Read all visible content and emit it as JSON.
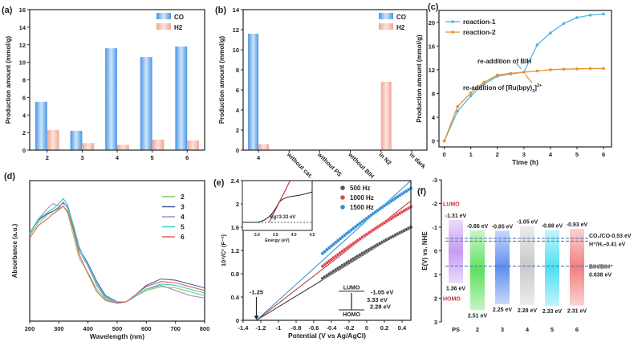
{
  "chart_data": [
    {
      "panel": "(a)",
      "type": "bar",
      "categories": [
        "2",
        "3",
        "4",
        "5",
        "6"
      ],
      "series": [
        {
          "name": "CO",
          "values": [
            5.5,
            2.2,
            11.6,
            10.6,
            11.8
          ],
          "color": "#5aa6ea"
        },
        {
          "name": "H2",
          "values": [
            2.3,
            0.8,
            0.6,
            1.2,
            1.1
          ],
          "color": "#f3b6a6"
        }
      ],
      "ylabel": "Production amount (mmol/g)",
      "xlabel": "",
      "ylim": [
        0,
        16
      ],
      "yticks": [
        0,
        2,
        4,
        6,
        8,
        10,
        12,
        14,
        16
      ],
      "legend": "top-right"
    },
    {
      "panel": "(b)",
      "type": "bar",
      "categories": [
        "4",
        "without cat.",
        "without PS",
        "without BIH",
        "in N2",
        "in dark"
      ],
      "series": [
        {
          "name": "CO",
          "values": [
            11.6,
            0,
            0,
            0,
            0,
            0
          ],
          "color": "#5aa6ea"
        },
        {
          "name": "H2",
          "values": [
            0.6,
            0,
            0,
            0,
            6.8,
            0
          ],
          "color": "#f3b6a6"
        }
      ],
      "ylabel": "Production amount (mmol/g)",
      "xlabel": "",
      "ylim": [
        0,
        14
      ],
      "yticks": [
        0,
        2,
        4,
        6,
        8,
        10,
        12,
        14
      ],
      "legend": "top-right"
    },
    {
      "panel": "(c)",
      "type": "line",
      "x": [
        0,
        0.5,
        1,
        1.5,
        2,
        2.5,
        3,
        3.5,
        4,
        4.5,
        5,
        5.5,
        6
      ],
      "series": [
        {
          "name": "reaction-1",
          "values": [
            0,
            5.0,
            7.6,
            9.6,
            10.9,
            11.3,
            11.6,
            16.2,
            18.2,
            19.8,
            20.8,
            21.2,
            21.4
          ],
          "color": "#4fb4e4"
        },
        {
          "name": "reaction-2",
          "values": [
            0,
            5.8,
            8.1,
            9.9,
            11.1,
            11.4,
            11.6,
            11.8,
            12.0,
            12.1,
            12.15,
            12.2,
            12.2
          ],
          "color": "#e8922c"
        }
      ],
      "annotations": [
        "re-addition of BIH",
        "re-addition of [Ru(bpy)3]2+"
      ],
      "annotation_parts": {
        "ru_prefix": "re-addition of [Ru(bpy)",
        "ru_sub": "3",
        "ru_sup": "2+",
        "ru_close": "]"
      },
      "xlabel": "Time (h)",
      "ylabel": "Production amount (mmol/g)",
      "xlim": [
        -0.2,
        6.3
      ],
      "ylim": [
        -1,
        22
      ],
      "xticks": [
        0,
        1,
        2,
        3,
        4,
        5,
        6
      ],
      "yticks": [
        0,
        4,
        8,
        12,
        16,
        20
      ],
      "legend": "top-left"
    },
    {
      "panel": "(d)",
      "type": "line",
      "x": [
        200,
        230,
        260,
        280,
        300,
        315,
        330,
        350,
        370,
        400,
        430,
        460,
        500,
        530,
        560,
        600,
        650,
        700,
        750,
        800
      ],
      "series": [
        {
          "name": "2",
          "color": "#7fd05c",
          "values": [
            0.62,
            0.72,
            0.78,
            0.81,
            0.83,
            0.85,
            0.8,
            0.62,
            0.44,
            0.33,
            0.2,
            0.12,
            0.09,
            0.1,
            0.14,
            0.19,
            0.22,
            0.21,
            0.18,
            0.15
          ]
        },
        {
          "name": "3",
          "color": "#3f5c9c",
          "values": [
            0.64,
            0.74,
            0.79,
            0.81,
            0.84,
            0.88,
            0.84,
            0.68,
            0.52,
            0.4,
            0.26,
            0.15,
            0.1,
            0.1,
            0.15,
            0.23,
            0.28,
            0.27,
            0.24,
            0.21
          ]
        },
        {
          "name": "4",
          "color": "#a78fc0",
          "values": [
            0.63,
            0.75,
            0.83,
            0.87,
            0.85,
            0.87,
            0.85,
            0.66,
            0.5,
            0.38,
            0.23,
            0.13,
            0.09,
            0.1,
            0.14,
            0.2,
            0.23,
            0.19,
            0.15,
            0.13
          ]
        },
        {
          "name": "5",
          "color": "#39c9c9",
          "values": [
            0.64,
            0.75,
            0.8,
            0.83,
            0.87,
            0.91,
            0.86,
            0.7,
            0.53,
            0.38,
            0.24,
            0.14,
            0.09,
            0.1,
            0.14,
            0.2,
            0.24,
            0.23,
            0.2,
            0.17
          ]
        },
        {
          "name": "6",
          "color": "#e06262",
          "values": [
            0.6,
            0.7,
            0.75,
            0.79,
            0.82,
            0.85,
            0.81,
            0.66,
            0.47,
            0.32,
            0.18,
            0.11,
            0.09,
            0.1,
            0.15,
            0.22,
            0.26,
            0.25,
            0.22,
            0.19
          ]
        }
      ],
      "xlabel": "Wavelength (nm)",
      "ylabel": "Absorbance (a.u.)",
      "xlim": [
        200,
        800
      ],
      "ylim": [
        -0.05,
        1.05
      ],
      "xticks": [
        200,
        300,
        400,
        500,
        600,
        700,
        800
      ],
      "legend": "top-right"
    },
    {
      "panel": "(e)",
      "type": "scatter",
      "series": [
        {
          "name": "500 Hz",
          "color": "#555555",
          "x_range": [
            -0.5,
            0.5
          ],
          "y_range": [
            0.72,
            1.6
          ],
          "fit_end": [
            0.5,
            1.62
          ]
        },
        {
          "name": "1000 Hz",
          "color": "#e0484f",
          "x_range": [
            -0.5,
            0.5
          ],
          "y_range": [
            0.93,
            1.95
          ],
          "fit_end": [
            0.5,
            2.05
          ]
        },
        {
          "name": "1500 Hz",
          "color": "#2f8fd8",
          "x_range": [
            -0.5,
            0.5
          ],
          "y_range": [
            1.15,
            2.27
          ],
          "fit_end": [
            0.5,
            2.4
          ]
        }
      ],
      "intercept": -1.25,
      "intercept_label": "-1.25",
      "xlabel": "Potential (V vs Ag/AgCl)",
      "ylabel": "10⁸/C² (F⁻²)",
      "xlim": [
        -1.4,
        0.5
      ],
      "ylim": [
        0,
        2.4
      ],
      "xticks": [
        -1.4,
        -1.2,
        -1.0,
        -0.8,
        -0.6,
        -0.4,
        -0.2,
        0.0,
        0.2,
        0.4
      ],
      "yticks": [
        0.0,
        0.4,
        0.8,
        1.2,
        1.6,
        2.0,
        2.4
      ],
      "diagram": {
        "lumo": "LUMO",
        "homo": "HOMO",
        "lumo_value": "-1.05 eV",
        "gap": "3.33 eV",
        "homo_value": "2.28 eV"
      },
      "inset": {
        "xlabel": "Energy (eV)",
        "xlim": [
          2.6,
          4.5
        ],
        "xticks": [
          "3.0",
          "3.5",
          "4.0",
          "4.5"
        ],
        "annotation": "Eg=3.33 eV",
        "eg": 3.33
      }
    },
    {
      "panel": "(f)",
      "type": "bar",
      "categories": [
        "PS",
        "2",
        "3",
        "4",
        "5",
        "6"
      ],
      "lumo": [
        -1.31,
        -0.86,
        -0.85,
        -1.05,
        -0.88,
        -0.93
      ],
      "homo": [
        1.36,
        2.51,
        2.25,
        2.28,
        2.33,
        2.31
      ],
      "lumo_labels": [
        "-1.31 eV",
        "-0.86 eV",
        "-0.85 eV",
        "-1.05 eV",
        "-0.88 eV",
        "-0.93 eV"
      ],
      "homo_labels": [
        "1.36 eV",
        "2.51 eV",
        "2.25 eV",
        "2.28 eV",
        "2.33 eV",
        "2.31 eV"
      ],
      "colors": [
        "#c69cf2",
        "#5fe05f",
        "#5e8ff0",
        "#c9c9c9",
        "#4fe0f2",
        "#f27f7f"
      ],
      "reference_lines": [
        {
          "label": "CO₂/CO-0.53 eV",
          "value": -0.53
        },
        {
          "label": "H⁺/H₂-0.41 eV",
          "value": -0.41
        },
        {
          "label": "BIH/BIH⁺",
          "label2": "0.638 eV",
          "value": 0.638
        }
      ],
      "lumo_tag": "LUMO",
      "homo_tag": "HOMO",
      "ylabel": "E(V) vs. NHE",
      "ylim": [
        -3,
        3
      ],
      "yticks": [
        "-3",
        "-2",
        "-1",
        "0",
        "1",
        "2",
        "3"
      ]
    }
  ]
}
